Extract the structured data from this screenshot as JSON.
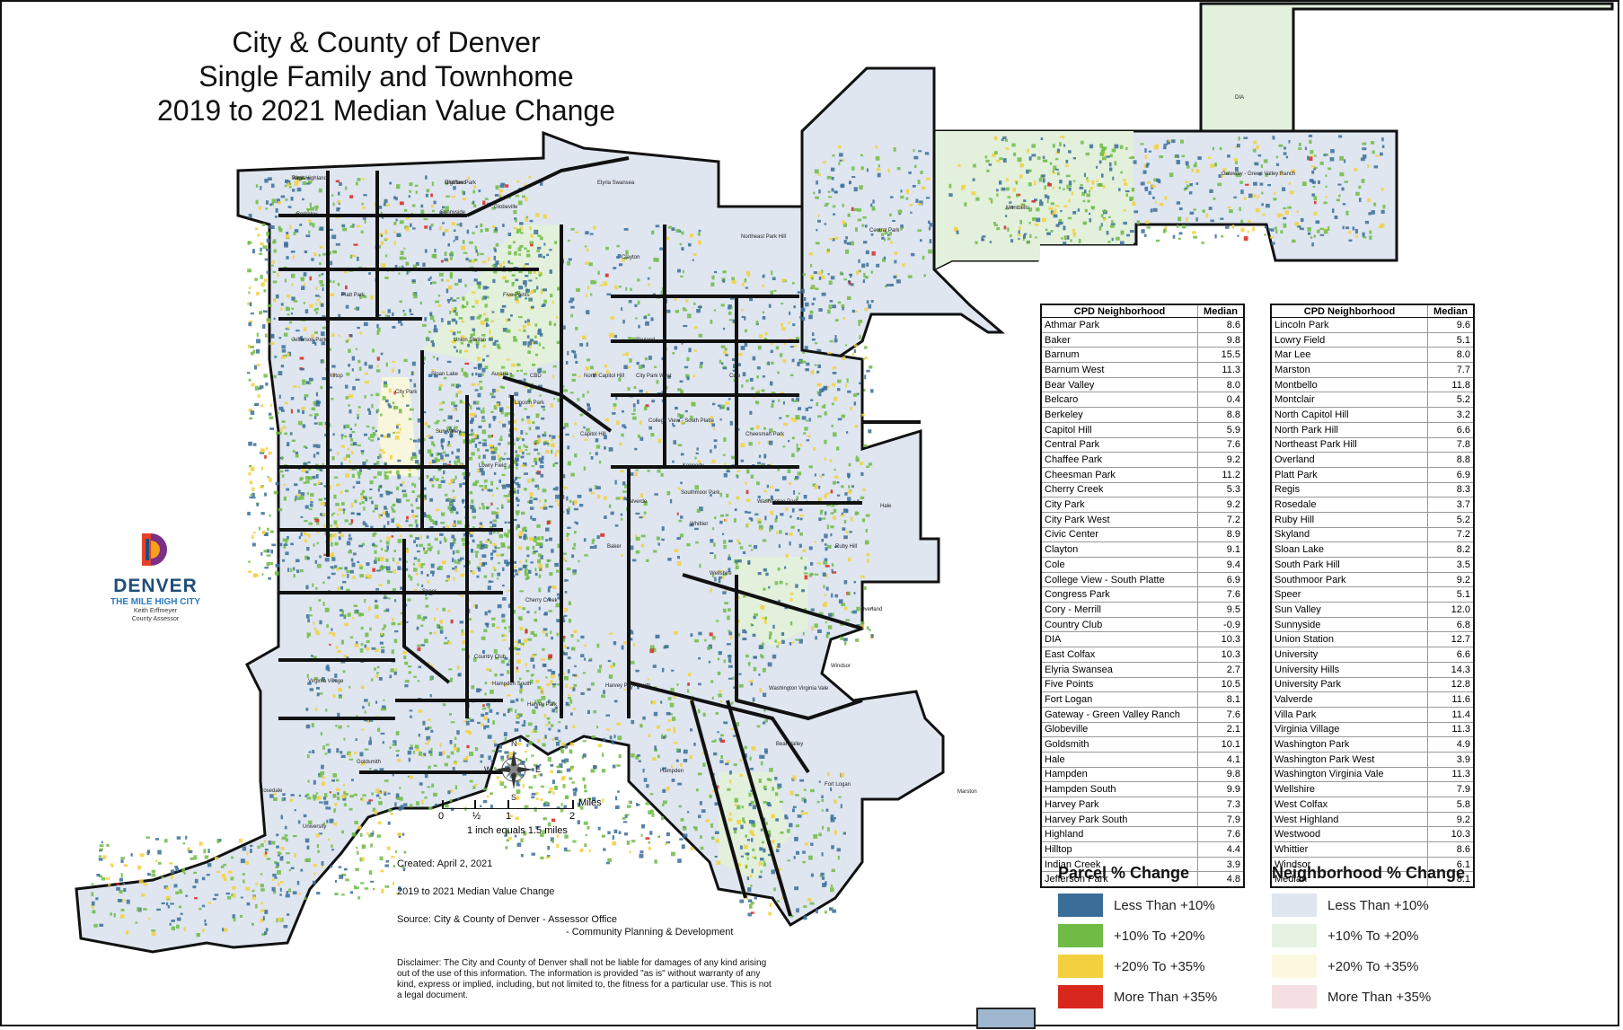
{
  "title": {
    "line1": "City & County of Denver",
    "line2": "Single Family and Townhome",
    "line3": "2019 to 2021 Median Value Change"
  },
  "logo": {
    "name": "DENVER",
    "tagline": "THE MILE HIGH CITY",
    "line1": "Keith Erffmeyer",
    "line2": "County Assessor",
    "mark_colors": [
      "#e8402a",
      "#f6a21a",
      "#7b2f86",
      "#1f4e79"
    ]
  },
  "compass": {
    "n": "N",
    "s": "S",
    "e": "E",
    "w": "W"
  },
  "scale": {
    "labels": [
      "0",
      "½",
      "1",
      "2"
    ],
    "unit": "Miles",
    "note": "1 inch equals 1.5 miles"
  },
  "info": {
    "created": "Created: April 2, 2021",
    "subject": "2019 to 2021 Median Value Change",
    "source1": "Source: City & County of Denver - Assessor Office",
    "source2": "- Community Planning & Development"
  },
  "disclaimer": "Disclaimer: The City and County of Denver shall not be liable for damages of any kind arising out of the use of this information. The information is provided \"as is\" without warranty of any kind, express or implied, including, but not limited to, the fitness for a particular use. This is not a legal document.",
  "map_labels": [
    "Regis",
    "Chaffee Park",
    "Berkeley",
    "Sunnyside",
    "Globeville",
    "Elyria Swansea",
    "Northeast Park Hill",
    "Central Park",
    "DIA",
    "Montbello",
    "Gateway - Green Valley Ranch",
    "Five Points",
    "Union Station",
    "Skyland",
    "Clayton",
    "Jefferson Park",
    "Sloan Lake",
    "Auraria",
    "CBD",
    "North Capitol Hill",
    "City Park West",
    "City Park",
    "Sun Valley",
    "Lincoln Park",
    "Capitol Hill",
    "Cheesman Park",
    "Hale",
    "Lowry Field",
    "Valverde",
    "Baker",
    "Cherry Creek",
    "Country Club",
    "Ruby Hill",
    "Overland",
    "Windsor",
    "Washington Virginia Vale",
    "Indian Creek",
    "Virginia Village",
    "Goldsmith",
    "Harvey Park",
    "Harvey Park South",
    "Rosedale",
    "University",
    "Bear Valley",
    "Fort Logan",
    "Marston",
    "Hampden",
    "Hampden South",
    "Kennedy",
    "Wellshire",
    "College View - South Platte",
    "Southmoor Park",
    "Washington Park",
    "Cole",
    "Whittier",
    "Speer",
    "Hilltop",
    "Platt Park",
    "West Highland",
    "Highland"
  ],
  "table_headers": {
    "name": "CPD Neighborhood",
    "value": "Median"
  },
  "table_left": [
    [
      "Athmar Park",
      "8.6"
    ],
    [
      "Baker",
      "9.8"
    ],
    [
      "Barnum",
      "15.5"
    ],
    [
      "Barnum West",
      "11.3"
    ],
    [
      "Bear Valley",
      "8.0"
    ],
    [
      "Belcaro",
      "0.4"
    ],
    [
      "Berkeley",
      "8.8"
    ],
    [
      "Capitol Hill",
      "5.9"
    ],
    [
      "Central Park",
      "7.6"
    ],
    [
      "Chaffee Park",
      "9.2"
    ],
    [
      "Cheesman Park",
      "11.2"
    ],
    [
      "Cherry Creek",
      "5.3"
    ],
    [
      "City Park",
      "9.2"
    ],
    [
      "City Park West",
      "7.2"
    ],
    [
      "Civic Center",
      "8.9"
    ],
    [
      "Clayton",
      "9.1"
    ],
    [
      "Cole",
      "9.4"
    ],
    [
      "College View - South Platte",
      "6.9"
    ],
    [
      "Congress Park",
      "7.6"
    ],
    [
      "Cory - Merrill",
      "9.5"
    ],
    [
      "Country Club",
      "-0.9"
    ],
    [
      "DIA",
      "10.3"
    ],
    [
      "East Colfax",
      "10.3"
    ],
    [
      "Elyria Swansea",
      "2.7"
    ],
    [
      "Five Points",
      "10.5"
    ],
    [
      "Fort Logan",
      "8.1"
    ],
    [
      "Gateway - Green Valley Ranch",
      "7.6"
    ],
    [
      "Globeville",
      "2.1"
    ],
    [
      "Goldsmith",
      "10.1"
    ],
    [
      "Hale",
      "4.1"
    ],
    [
      "Hampden",
      "9.8"
    ],
    [
      "Hampden South",
      "9.9"
    ],
    [
      "Harvey Park",
      "7.3"
    ],
    [
      "Harvey Park South",
      "7.9"
    ],
    [
      "Highland",
      "7.6"
    ],
    [
      "Hilltop",
      "4.4"
    ],
    [
      "Indian Creek",
      "3.9"
    ],
    [
      "Jefferson Park",
      "4.8"
    ]
  ],
  "table_right": [
    [
      "Lincoln Park",
      "9.6"
    ],
    [
      "Lowry Field",
      "5.1"
    ],
    [
      "Mar Lee",
      "8.0"
    ],
    [
      "Marston",
      "7.7"
    ],
    [
      "Montbello",
      "11.8"
    ],
    [
      "Montclair",
      "5.2"
    ],
    [
      "North Capitol Hill",
      "3.2"
    ],
    [
      "North Park Hill",
      "6.6"
    ],
    [
      "Northeast Park Hill",
      "7.8"
    ],
    [
      "Overland",
      "8.8"
    ],
    [
      "Platt Park",
      "6.9"
    ],
    [
      "Regis",
      "8.3"
    ],
    [
      "Rosedale",
      "3.7"
    ],
    [
      "Ruby Hill",
      "5.2"
    ],
    [
      "Skyland",
      "7.2"
    ],
    [
      "Sloan Lake",
      "8.2"
    ],
    [
      "South Park Hill",
      "3.5"
    ],
    [
      "Southmoor Park",
      "9.2"
    ],
    [
      "Speer",
      "5.1"
    ],
    [
      "Sun Valley",
      "12.0"
    ],
    [
      "Sunnyside",
      "6.8"
    ],
    [
      "Union Station",
      "12.7"
    ],
    [
      "University",
      "6.6"
    ],
    [
      "University Hills",
      "14.3"
    ],
    [
      "University Park",
      "12.8"
    ],
    [
      "Valverde",
      "11.6"
    ],
    [
      "Villa Park",
      "11.4"
    ],
    [
      "Virginia Village",
      "11.3"
    ],
    [
      "Washington Park",
      "4.9"
    ],
    [
      "Washington Park West",
      "3.9"
    ],
    [
      "Washington Virginia Vale",
      "11.3"
    ],
    [
      "Wellshire",
      "7.9"
    ],
    [
      "West Colfax",
      "5.8"
    ],
    [
      "West Highland",
      "9.2"
    ],
    [
      "Westwood",
      "10.3"
    ],
    [
      "Whittier",
      "8.6"
    ],
    [
      "Windsor",
      "6.1"
    ],
    [
      "Median",
      "8.1"
    ]
  ],
  "legend_parcel": {
    "title": "Parcel % Change",
    "items": [
      {
        "label": "Less Than +10%",
        "color": "#3a6e99"
      },
      {
        "label": "+10% To +20%",
        "color": "#6fbb45"
      },
      {
        "label": "+20% To +35%",
        "color": "#f3d03e"
      },
      {
        "label": "More Than +35%",
        "color": "#d8281e"
      }
    ]
  },
  "legend_neighborhood": {
    "title": "Neighborhood % Change",
    "items": [
      {
        "label": "Less Than +10%",
        "color": "#dfe6f0"
      },
      {
        "label": "+10% To +20%",
        "color": "#e7f3e2"
      },
      {
        "label": "+20% To +35%",
        "color": "#fbf8df"
      },
      {
        "label": "More Than +35%",
        "color": "#f5dfe3"
      }
    ]
  },
  "map_colors": {
    "base": "#dfe6f0",
    "green_zone": "#e2f0dc",
    "yellow_zone": "#f8f6dc",
    "parcel_blue": "#3a6e99",
    "parcel_green": "#6fbb45",
    "parcel_yellow": "#f3d03e",
    "parcel_red": "#d8281e",
    "boundary": "#111111"
  }
}
